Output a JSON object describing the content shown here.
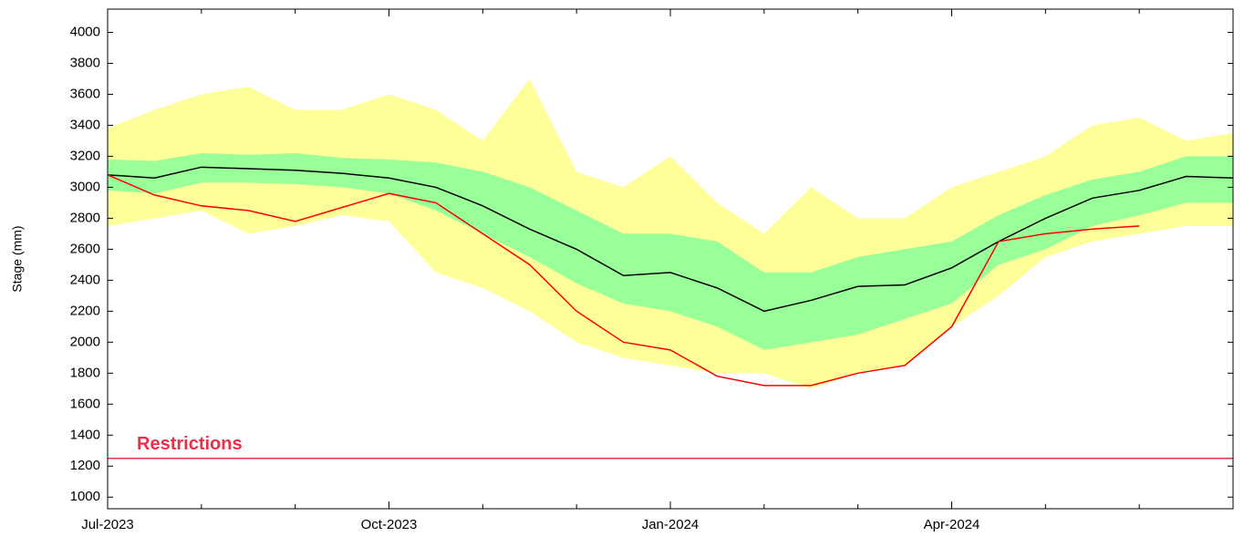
{
  "chart_data": {
    "type": "band-line",
    "ylabel": "Stage (mm)",
    "x": [
      0,
      0.5,
      1,
      1.5,
      2,
      2.5,
      3,
      3.5,
      4,
      4.5,
      5,
      5.5,
      6,
      6.5,
      7,
      7.5,
      8,
      8.5,
      9,
      9.5,
      10,
      10.5,
      11,
      11.5,
      12
    ],
    "xlim": [
      0,
      12
    ],
    "xticks": [
      {
        "value": 0,
        "label": "Jul-2023"
      },
      {
        "value": 3,
        "label": "Oct-2023"
      },
      {
        "value": 6,
        "label": "Jan-2024"
      },
      {
        "value": 9,
        "label": "Apr-2024"
      }
    ],
    "xminorticks": [
      1,
      2,
      4,
      5,
      7,
      8,
      10,
      11
    ],
    "ylim": [
      925,
      4150
    ],
    "yticks": [
      1000,
      1200,
      1400,
      1600,
      1800,
      2000,
      2200,
      2400,
      2600,
      2800,
      3000,
      3200,
      3400,
      3600,
      3800,
      4000
    ],
    "bands": [
      {
        "color": "#ffff99",
        "lower": [
          2750,
          2800,
          2850,
          2700,
          2750,
          2820,
          2780,
          2450,
          2350,
          2200,
          2000,
          1900,
          1850,
          1800,
          1800,
          1700,
          1800,
          1850,
          2100,
          2300,
          2550,
          2650,
          2700,
          2750,
          2750
        ],
        "upper": [
          3380,
          3500,
          3600,
          3650,
          3500,
          3500,
          3600,
          3500,
          3300,
          3700,
          3100,
          3000,
          3200,
          2900,
          2700,
          3000,
          2800,
          2800,
          3000,
          3100,
          3200,
          3400,
          3450,
          3300,
          3350
        ]
      },
      {
        "color": "#99ff99",
        "lower": [
          2980,
          2960,
          3030,
          3030,
          3020,
          3000,
          2960,
          2850,
          2700,
          2550,
          2380,
          2250,
          2200,
          2100,
          1950,
          2000,
          2050,
          2150,
          2250,
          2500,
          2600,
          2750,
          2820,
          2900,
          2900
        ],
        "upper": [
          3180,
          3170,
          3220,
          3210,
          3220,
          3190,
          3180,
          3160,
          3100,
          3000,
          2850,
          2700,
          2700,
          2650,
          2450,
          2450,
          2550,
          2600,
          2650,
          2820,
          2950,
          3050,
          3100,
          3200,
          3200
        ]
      }
    ],
    "series": [
      {
        "color": "#000000",
        "values": [
          3080,
          3060,
          3130,
          3120,
          3110,
          3090,
          3060,
          3000,
          2880,
          2730,
          2600,
          2430,
          2450,
          2350,
          2200,
          2270,
          2360,
          2370,
          2480,
          2650,
          2800,
          2930,
          2980,
          3070,
          3060
        ]
      },
      {
        "color": "#ff0000",
        "values": [
          3080,
          2950,
          2880,
          2850,
          2780,
          2870,
          2960,
          2900,
          2700,
          2500,
          2200,
          2000,
          1950,
          1780,
          1720,
          1720,
          1800,
          1850,
          2100,
          2650,
          2700,
          2730,
          2750,
          null,
          null
        ]
      }
    ],
    "threshold": {
      "value": 1250,
      "label": "Restrictions",
      "color": "#e8304a"
    }
  }
}
